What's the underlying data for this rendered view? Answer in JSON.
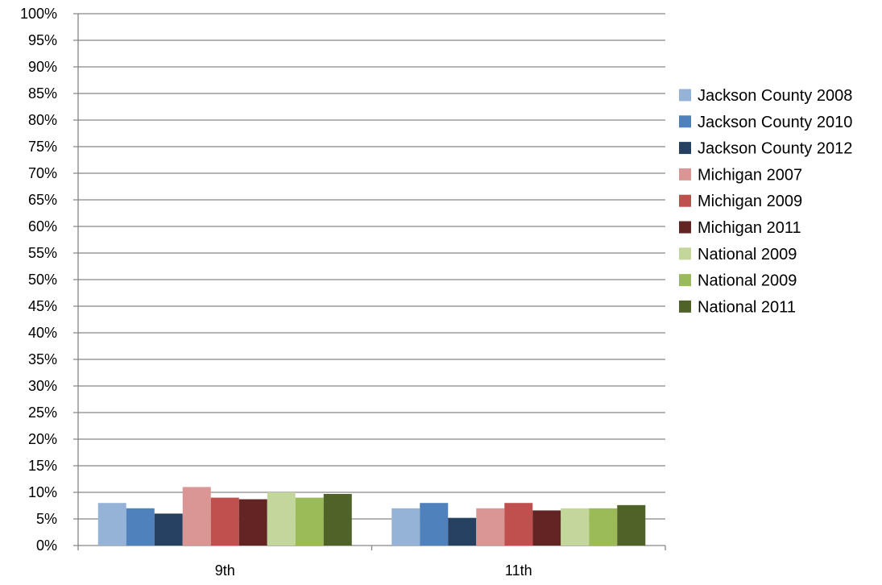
{
  "chart_data": {
    "type": "bar",
    "categories": [
      "9th",
      "11th"
    ],
    "series": [
      {
        "name": "Jackson County 2008",
        "color": "#95B3D7",
        "values": [
          8,
          7
        ]
      },
      {
        "name": "Jackson County 2010",
        "color": "#4F81BD",
        "values": [
          7,
          8
        ]
      },
      {
        "name": "Jackson County 2012",
        "color": "#254061",
        "values": [
          6,
          5.2
        ]
      },
      {
        "name": "Michigan 2007",
        "color": "#D99694",
        "values": [
          11,
          7
        ]
      },
      {
        "name": "Michigan 2009",
        "color": "#C0504D",
        "values": [
          9,
          8
        ]
      },
      {
        "name": "Michigan 2011",
        "color": "#632523",
        "values": [
          8.7,
          6.6
        ]
      },
      {
        "name": "National 2009",
        "color": "#C3D69B",
        "values": [
          10,
          7
        ]
      },
      {
        "name": "National 2009",
        "color": "#9BBB59",
        "values": [
          9,
          7
        ]
      },
      {
        "name": "National 2011",
        "color": "#4F6228",
        "values": [
          9.7,
          7.6
        ]
      }
    ],
    "ylim": [
      0,
      100
    ],
    "yticks": [
      "0%",
      "5%",
      "10%",
      "15%",
      "20%",
      "25%",
      "30%",
      "35%",
      "40%",
      "45%",
      "50%",
      "55%",
      "60%",
      "65%",
      "70%",
      "75%",
      "80%",
      "85%",
      "90%",
      "95%",
      "100%"
    ],
    "title": "",
    "xlabel": "",
    "ylabel": "",
    "grid": true,
    "legend_position": "right"
  }
}
